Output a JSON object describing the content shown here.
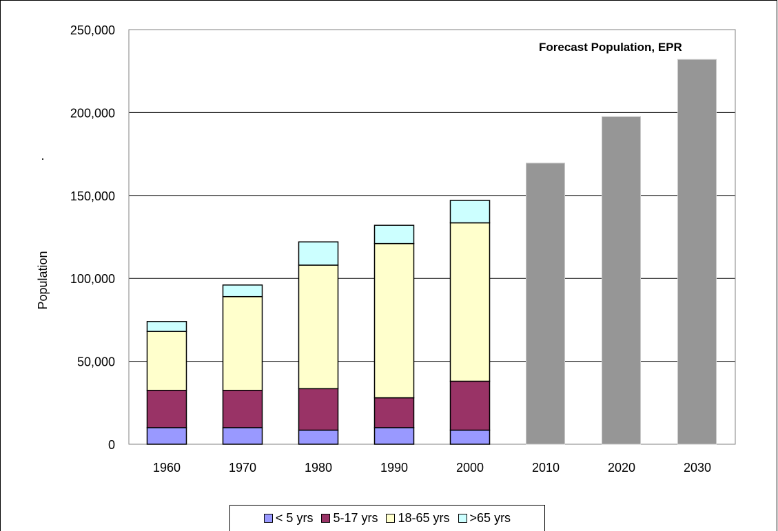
{
  "chart_data": {
    "type": "bar",
    "stacked": true,
    "categories": [
      "1960",
      "1970",
      "1980",
      "1990",
      "2000",
      "2010",
      "2020",
      "2030"
    ],
    "series": [
      {
        "name": "< 5 yrs",
        "color": "#9999FF",
        "values": [
          10000,
          10000,
          8500,
          10000,
          8500,
          null,
          null,
          null
        ]
      },
      {
        "name": "5-17 yrs",
        "color": "#993366",
        "values": [
          22500,
          22500,
          25000,
          18000,
          29500,
          null,
          null,
          null
        ]
      },
      {
        "name": "18-65 yrs",
        "color": "#FFFFCC",
        "values": [
          35500,
          56500,
          74500,
          93000,
          95500,
          null,
          null,
          null
        ]
      },
      {
        "name": ">65 yrs",
        "color": "#CCFFFF",
        "values": [
          6000,
          7000,
          14000,
          11000,
          13500,
          null,
          null,
          null
        ]
      }
    ],
    "forecast": {
      "color": "#969696",
      "values": [
        null,
        null,
        null,
        null,
        null,
        169500,
        197500,
        232000
      ]
    },
    "title": "",
    "annotation": "Forecast Population, EPR",
    "stray_mark": ".",
    "xlabel": "",
    "ylabel": "Population",
    "ylim": [
      0,
      250000
    ],
    "yticks": [
      "0",
      "50,000",
      "100,000",
      "150,000",
      "200,000",
      "250,000"
    ],
    "ytick_values": [
      0,
      50000,
      100000,
      150000,
      200000,
      250000
    ],
    "grid": true,
    "legend_position": "bottom"
  }
}
